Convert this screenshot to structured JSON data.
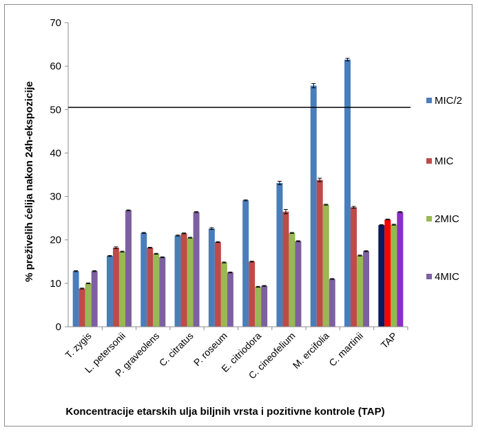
{
  "chart_data": {
    "type": "bar",
    "title": "",
    "ylabel": "% preživelih ćelija nakon 24h-ekspozicije",
    "xlabel": "Koncentracije etarskih ulja biljnih vrsta i pozitivne kontrole (TAP)",
    "ylim": [
      0,
      70
    ],
    "yticks": [
      "0",
      "10",
      "20",
      "30",
      "40",
      "50",
      "60",
      "70"
    ],
    "reference_line": 50.5,
    "legend_position": "right",
    "categories": [
      "T. zygis",
      "L. petersonii",
      "P. graveolens",
      "C. citratus",
      "P. roseum",
      "E. citriodora",
      "C. cineofelium",
      "M. ercifolia",
      "C. martinii",
      "TAP"
    ],
    "series": [
      {
        "name": "MIC/2",
        "color": "#4a7ebb",
        "values": [
          12.8,
          16.3,
          21.6,
          21.0,
          22.6,
          29.1,
          33.1,
          55.5,
          61.5,
          23.4
        ],
        "errors": [
          0.1,
          0.1,
          0.1,
          0.1,
          0.2,
          0.1,
          0.4,
          0.5,
          0.3,
          0.1
        ]
      },
      {
        "name": "MIC",
        "color": "#be4b48",
        "values": [
          8.8,
          18.2,
          18.2,
          21.5,
          19.5,
          15.0,
          26.5,
          33.8,
          27.5,
          24.7
        ],
        "errors": [
          0.1,
          0.2,
          0.1,
          0.1,
          0.1,
          0.1,
          0.5,
          0.4,
          0.2,
          0.1
        ]
      },
      {
        "name": "2MIC",
        "color": "#98b954",
        "values": [
          10.0,
          17.3,
          16.8,
          20.5,
          14.8,
          9.2,
          21.6,
          28.1,
          16.4,
          23.5
        ],
        "errors": [
          0.1,
          0.1,
          0.1,
          0.1,
          0.1,
          0.1,
          0.1,
          0.1,
          0.1,
          0.1
        ]
      },
      {
        "name": "4MIC",
        "color": "#7d60a0",
        "values": [
          12.8,
          26.8,
          16.0,
          26.4,
          12.5,
          9.4,
          19.7,
          11.0,
          17.4,
          26.4
        ],
        "errors": [
          0.1,
          0.1,
          0.1,
          0.1,
          0.1,
          0.1,
          0.1,
          0.1,
          0.1,
          0.1
        ]
      }
    ],
    "tap_colors": [
      "#0a1a5c",
      "#ff0000",
      "#8fbc4c",
      "#8b2fc9"
    ]
  }
}
